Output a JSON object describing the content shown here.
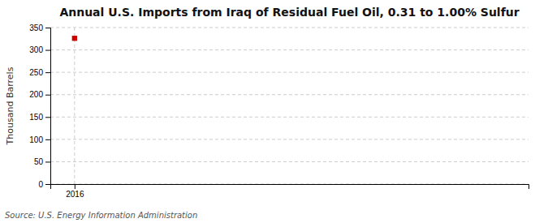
{
  "chart_data": {
    "type": "scatter",
    "title": "Annual U.S. Imports from Iraq of Residual Fuel Oil, 0.31 to 1.00% Sulfur",
    "ylabel": "Thousand Barrels",
    "source": "Source: U.S. Energy Information Administration",
    "x": [
      2016
    ],
    "values": [
      326
    ],
    "color": "#cc0000",
    "marker": "square",
    "xlim": [
      2015.6,
      2023.5
    ],
    "xticks": [
      2016
    ],
    "ylim": [
      0,
      350
    ],
    "yticks": [
      0,
      50,
      100,
      150,
      200,
      250,
      300,
      350
    ],
    "grid": true
  }
}
